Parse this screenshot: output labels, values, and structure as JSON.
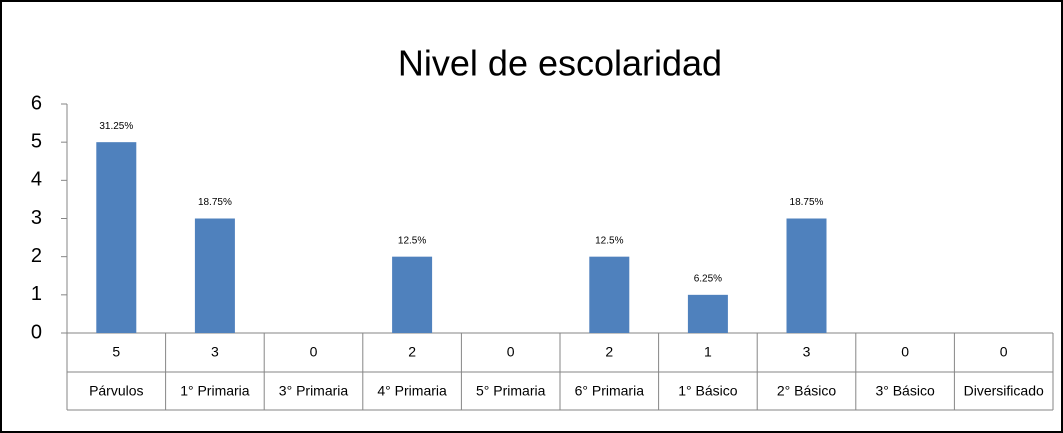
{
  "chart_data": {
    "type": "bar",
    "title": "Nivel de escolaridad",
    "categories": [
      "Párvulos",
      "1° Primaria",
      "3° Primaria",
      "4° Primaria",
      "5° Primaria",
      "6° Primaria",
      "1° Básico",
      "2° Básico",
      "3° Básico",
      "Diversificado"
    ],
    "values": [
      5,
      3,
      0,
      2,
      0,
      2,
      1,
      3,
      0,
      0
    ],
    "percent_labels": [
      "31.25%",
      "18.75%",
      null,
      "12.5%",
      null,
      "12.5%",
      "6.25%",
      "18.75%",
      null,
      null
    ],
    "color": "#4f81bd",
    "ylim": [
      0,
      6
    ],
    "yticks": [
      0,
      1,
      2,
      3,
      4,
      5,
      6
    ],
    "grid": false
  }
}
